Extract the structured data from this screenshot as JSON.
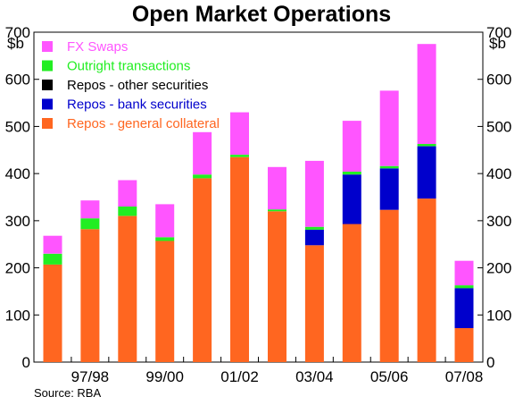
{
  "chart_data": {
    "type": "bar",
    "stacked": true,
    "title": "Open Market Operations",
    "ylabel_left": "$b",
    "ylabel_right": "$b",
    "ylim": [
      0,
      700
    ],
    "yticks": [
      0,
      100,
      200,
      300,
      400,
      500,
      600,
      700
    ],
    "grid": false,
    "legend_position": "top-left",
    "x_tick_labels": [
      "97/98",
      "99/00",
      "01/02",
      "03/04",
      "05/06",
      "07/08"
    ],
    "x_tick_after_bar": [
      1,
      3,
      5,
      7,
      9,
      11
    ],
    "bar_count": 12,
    "series": [
      {
        "name": "Repos - general collateral",
        "color": "#FF6620",
        "values": [
          207,
          282,
          310,
          257,
          390,
          435,
          320,
          248,
          293,
          323,
          347,
          72
        ]
      },
      {
        "name": "Repos - bank securities",
        "color": "#0000CC",
        "values": [
          0,
          0,
          0,
          0,
          0,
          0,
          0,
          33,
          105,
          88,
          111,
          85
        ]
      },
      {
        "name": "Repos - other securities",
        "color": "#000000",
        "values": [
          0,
          0,
          0,
          0,
          0,
          0,
          0,
          0,
          0,
          0,
          0,
          0
        ]
      },
      {
        "name": "Outright transactions",
        "color": "#22EE22",
        "values": [
          23,
          23,
          20,
          8,
          8,
          5,
          4,
          6,
          6,
          5,
          5,
          6
        ]
      },
      {
        "name": "FX Swaps",
        "color": "#FF55FF",
        "values": [
          38,
          38,
          56,
          70,
          90,
          90,
          90,
          140,
          108,
          160,
          212,
          52
        ]
      }
    ],
    "legend": [
      {
        "name": "FX Swaps",
        "color": "#FF55FF",
        "text_color": "#FF55FF"
      },
      {
        "name": "Outright transactions",
        "color": "#22EE22",
        "text_color": "#22EE22"
      },
      {
        "name": "Repos - other securities",
        "color": "#000000",
        "text_color": "#000000"
      },
      {
        "name": "Repos - bank securities",
        "color": "#0000CC",
        "text_color": "#0000CC"
      },
      {
        "name": "Repos - general collateral",
        "color": "#FF6620",
        "text_color": "#FF6620"
      }
    ],
    "source": "Source: RBA"
  }
}
